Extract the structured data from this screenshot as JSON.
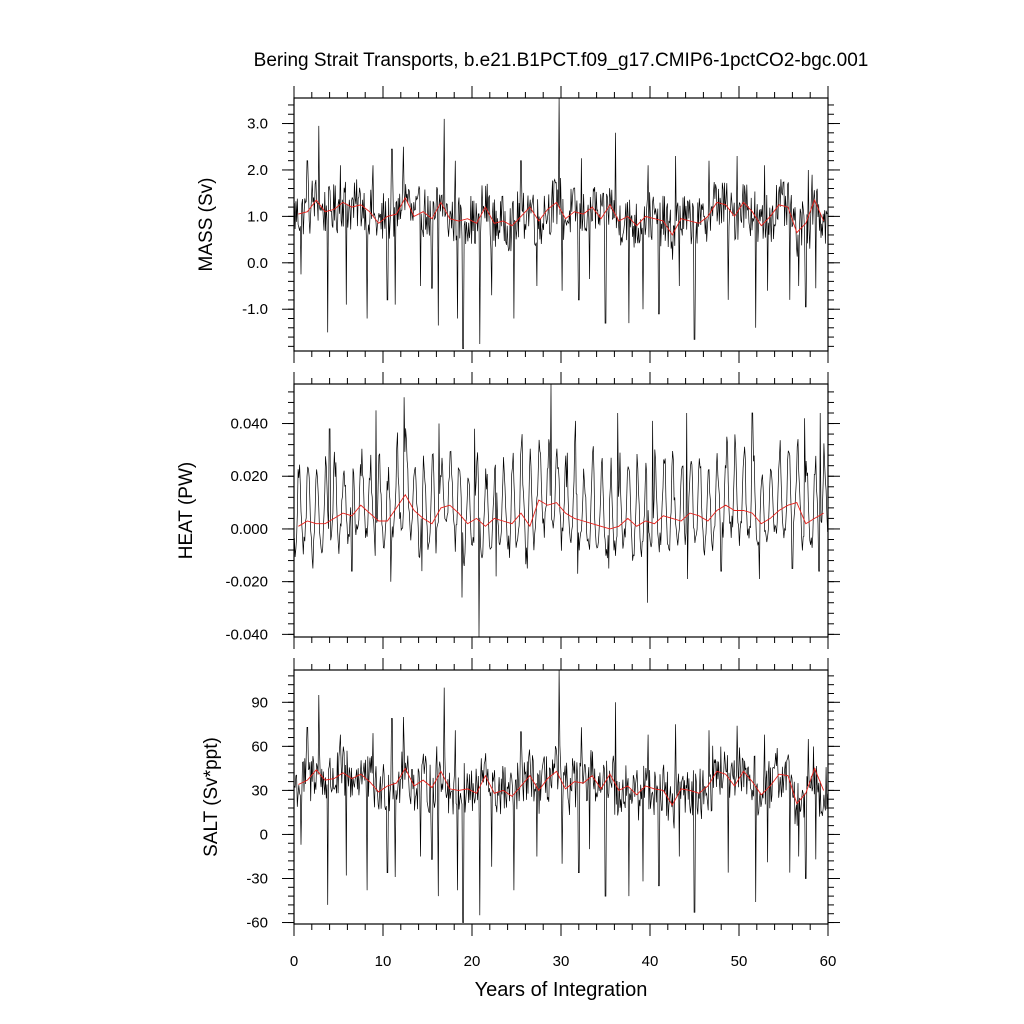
{
  "chart_data": {
    "type": "line",
    "title": "Bering Strait Transports, b.e21.B1PCT.f09_g17.CMIP6-1pctCO2-bgc.001",
    "xlabel": "Years of Integration",
    "xlim": [
      0,
      60
    ],
    "xticks": [
      0,
      10,
      20,
      30,
      40,
      50,
      60
    ],
    "xtick_labels": [
      "0",
      "10",
      "20",
      "30",
      "40",
      "50",
      "60"
    ],
    "grid": false,
    "legend": "none",
    "colors": {
      "monthly": "#000000",
      "annual_mean": "#e8201a"
    },
    "panels": [
      {
        "name": "mass",
        "ylabel": "MASS (Sv)",
        "ylim": [
          -1.9,
          3.55
        ],
        "yticks": [
          -1.0,
          0.0,
          1.0,
          2.0,
          3.0
        ],
        "ytick_labels": [
          "-1.0",
          "0.0",
          "1.0",
          "2.0",
          "3.0"
        ],
        "minor_step": 0.2,
        "annual_x": [
          0.5,
          1.5,
          2.5,
          3.5,
          4.5,
          5.5,
          6.5,
          7.5,
          8.5,
          9.5,
          10.5,
          11.5,
          12.5,
          13.5,
          14.5,
          15.5,
          16.5,
          17.5,
          18.5,
          19.5,
          20.5,
          21.5,
          22.5,
          23.5,
          24.5,
          25.5,
          26.5,
          27.5,
          28.5,
          29.5,
          30.5,
          31.5,
          32.5,
          33.5,
          34.5,
          35.5,
          36.5,
          37.5,
          38.5,
          39.5,
          40.5,
          41.5,
          42.5,
          43.5,
          44.5,
          45.5,
          46.5,
          47.5,
          48.5,
          49.5,
          50.5,
          51.5,
          52.5,
          53.5,
          54.5,
          55.5,
          56.5,
          57.5,
          58.5,
          59.5
        ],
        "annual_mean": [
          1.05,
          1.1,
          1.35,
          1.1,
          1.15,
          1.3,
          1.2,
          1.25,
          1.1,
          0.85,
          1.0,
          1.05,
          1.4,
          1.0,
          1.1,
          0.95,
          1.3,
          0.95,
          0.9,
          0.95,
          0.85,
          1.2,
          0.85,
          0.9,
          0.8,
          1.0,
          1.2,
          0.9,
          1.15,
          1.3,
          0.95,
          1.1,
          1.05,
          1.2,
          0.95,
          1.25,
          0.9,
          1.0,
          0.8,
          1.0,
          0.95,
          0.9,
          0.6,
          0.95,
          0.9,
          0.85,
          1.0,
          1.3,
          1.25,
          1.0,
          1.3,
          1.1,
          0.8,
          1.0,
          1.25,
          1.2,
          0.65,
          0.85,
          1.35,
          0.9
        ],
        "spread": 0.55,
        "dips": [
          [
            0.8,
            -0.25
          ],
          [
            3.8,
            -1.5
          ],
          [
            5.9,
            -0.9
          ],
          [
            8.2,
            -1.2
          ],
          [
            10.5,
            -0.8
          ],
          [
            11.4,
            -0.9
          ],
          [
            14.2,
            -0.5
          ],
          [
            15.5,
            -0.55
          ],
          [
            16.2,
            -1.35
          ],
          [
            18.4,
            -1.2
          ],
          [
            19.0,
            -1.85
          ],
          [
            20.9,
            -1.75
          ],
          [
            22.2,
            -0.7
          ],
          [
            24.7,
            -1.2
          ],
          [
            27.3,
            -0.5
          ],
          [
            30.1,
            -0.6
          ],
          [
            32.0,
            -0.8
          ],
          [
            33.2,
            -0.35
          ],
          [
            35.0,
            -1.3
          ],
          [
            37.6,
            -1.3
          ],
          [
            39.2,
            -1.0
          ],
          [
            41.0,
            -1.1
          ],
          [
            43.3,
            -0.5
          ],
          [
            45.0,
            -1.65
          ],
          [
            48.8,
            -0.8
          ],
          [
            51.9,
            -1.4
          ],
          [
            53.2,
            -0.6
          ],
          [
            55.7,
            -0.8
          ],
          [
            56.7,
            -0.5
          ],
          [
            57.5,
            -0.95
          ],
          [
            58.6,
            -0.55
          ]
        ],
        "peaks": [
          [
            1.5,
            2.2
          ],
          [
            2.8,
            2.95
          ],
          [
            5.2,
            2.1
          ],
          [
            8.9,
            2.1
          ],
          [
            11.0,
            2.45
          ],
          [
            12.3,
            2.5
          ],
          [
            16.9,
            3.1
          ],
          [
            18.1,
            2.2
          ],
          [
            25.5,
            2.2
          ],
          [
            29.8,
            3.55
          ],
          [
            32.3,
            2.25
          ],
          [
            36.1,
            2.8
          ],
          [
            39.8,
            2.1
          ],
          [
            42.9,
            2.3
          ],
          [
            46.6,
            2.2
          ],
          [
            49.8,
            2.3
          ],
          [
            52.9,
            2.1
          ],
          [
            57.8,
            2.0
          ]
        ]
      },
      {
        "name": "heat",
        "ylabel": "HEAT (PW)",
        "ylim": [
          -0.041,
          0.055
        ],
        "yticks": [
          -0.04,
          -0.02,
          0.0,
          0.02,
          0.04
        ],
        "ytick_labels": [
          "-0.040",
          "-0.020",
          "0.000",
          "0.020",
          "0.040"
        ],
        "minor_step": 0.004,
        "annual_x": [
          0.5,
          1.5,
          2.5,
          3.5,
          4.5,
          5.5,
          6.5,
          7.5,
          8.5,
          9.5,
          10.5,
          11.5,
          12.5,
          13.5,
          14.5,
          15.5,
          16.5,
          17.5,
          18.5,
          19.5,
          20.5,
          21.5,
          22.5,
          23.5,
          24.5,
          25.5,
          26.5,
          27.5,
          28.5,
          29.5,
          30.5,
          31.5,
          32.5,
          33.5,
          34.5,
          35.5,
          36.5,
          37.5,
          38.5,
          39.5,
          40.5,
          41.5,
          42.5,
          43.5,
          44.5,
          45.5,
          46.5,
          47.5,
          48.5,
          49.5,
          50.5,
          51.5,
          52.5,
          53.5,
          54.5,
          55.5,
          56.5,
          57.5,
          58.5,
          59.5
        ],
        "annual_mean": [
          0.001,
          0.003,
          0.002,
          0.002,
          0.004,
          0.006,
          0.005,
          0.009,
          0.006,
          0.003,
          0.003,
          0.008,
          0.013,
          0.007,
          0.004,
          0.002,
          0.008,
          0.009,
          0.006,
          0.002,
          0.004,
          0.001,
          0.004,
          0.003,
          0.002,
          0.006,
          0.001,
          0.011,
          0.009,
          0.01,
          0.006,
          0.004,
          0.003,
          0.002,
          0.001,
          0.0,
          0.001,
          0.004,
          0.001,
          0.003,
          0.002,
          0.005,
          0.004,
          0.003,
          0.006,
          0.005,
          0.003,
          0.007,
          0.009,
          0.007,
          0.007,
          0.006,
          0.002,
          0.004,
          0.007,
          0.009,
          0.01,
          0.002,
          0.004,
          0.006
        ],
        "spread_pos": 0.028,
        "spread_neg": 0.012,
        "dips": [
          [
            2.1,
            -0.015
          ],
          [
            6.5,
            -0.016
          ],
          [
            10.9,
            -0.02
          ],
          [
            14.4,
            -0.016
          ],
          [
            18.9,
            -0.026
          ],
          [
            20.8,
            -0.041
          ],
          [
            22.7,
            -0.018
          ],
          [
            26.2,
            -0.015
          ],
          [
            31.9,
            -0.017
          ],
          [
            35.4,
            -0.015
          ],
          [
            39.7,
            -0.028
          ],
          [
            44.2,
            -0.019
          ],
          [
            48.0,
            -0.016
          ],
          [
            52.3,
            -0.019
          ],
          [
            56.0,
            -0.015
          ],
          [
            59.0,
            -0.016
          ]
        ],
        "peaks": [
          [
            4.0,
            0.038
          ],
          [
            9.2,
            0.045
          ],
          [
            12.4,
            0.05
          ],
          [
            16.3,
            0.04
          ],
          [
            20.3,
            0.038
          ],
          [
            25.6,
            0.036
          ],
          [
            28.9,
            0.055
          ],
          [
            31.6,
            0.041
          ],
          [
            36.4,
            0.044
          ],
          [
            40.3,
            0.041
          ],
          [
            44.1,
            0.044
          ],
          [
            48.6,
            0.035
          ],
          [
            51.5,
            0.044
          ],
          [
            57.4,
            0.042
          ],
          [
            59.1,
            0.044
          ]
        ]
      },
      {
        "name": "salt",
        "ylabel": "SALT (Sv*ppt)",
        "ylim": [
          -61,
          112
        ],
        "yticks": [
          -60,
          -30,
          0,
          30,
          60,
          90
        ],
        "ytick_labels": [
          "-60",
          "-30",
          "0",
          "30",
          "60",
          "90"
        ],
        "minor_step": 6,
        "annual_x": [
          0.5,
          1.5,
          2.5,
          3.5,
          4.5,
          5.5,
          6.5,
          7.5,
          8.5,
          9.5,
          10.5,
          11.5,
          12.5,
          13.5,
          14.5,
          15.5,
          16.5,
          17.5,
          18.5,
          19.5,
          20.5,
          21.5,
          22.5,
          23.5,
          24.5,
          25.5,
          26.5,
          27.5,
          28.5,
          29.5,
          30.5,
          31.5,
          32.5,
          33.5,
          34.5,
          35.5,
          36.5,
          37.5,
          38.5,
          39.5,
          40.5,
          41.5,
          42.5,
          43.5,
          44.5,
          45.5,
          46.5,
          47.5,
          48.5,
          49.5,
          50.5,
          51.5,
          52.5,
          53.5,
          54.5,
          55.5,
          56.5,
          57.5,
          58.5,
          59.5
        ],
        "annual_mean": [
          34,
          37,
          44,
          37,
          38,
          42,
          38,
          41,
          36,
          29,
          33,
          35,
          45,
          33,
          37,
          32,
          43,
          31,
          30,
          31,
          28,
          40,
          28,
          30,
          26,
          33,
          40,
          30,
          38,
          43,
          31,
          36,
          35,
          40,
          31,
          41,
          30,
          33,
          27,
          33,
          31,
          30,
          20,
          31,
          30,
          28,
          33,
          43,
          41,
          33,
          43,
          36,
          27,
          33,
          41,
          40,
          21,
          28,
          45,
          30
        ],
        "spread": 18,
        "dips": [
          [
            0.8,
            -7
          ],
          [
            3.8,
            -48
          ],
          [
            5.9,
            -28
          ],
          [
            8.2,
            -38
          ],
          [
            10.5,
            -26
          ],
          [
            11.4,
            -29
          ],
          [
            14.2,
            -15
          ],
          [
            15.5,
            -17
          ],
          [
            16.2,
            -42
          ],
          [
            18.4,
            -38
          ],
          [
            19.0,
            -60
          ],
          [
            20.9,
            -55
          ],
          [
            22.2,
            -22
          ],
          [
            24.7,
            -38
          ],
          [
            27.3,
            -15
          ],
          [
            30.1,
            -20
          ],
          [
            32.0,
            -26
          ],
          [
            33.2,
            -10
          ],
          [
            35.0,
            -42
          ],
          [
            37.6,
            -42
          ],
          [
            39.2,
            -32
          ],
          [
            41.0,
            -35
          ],
          [
            43.3,
            -15
          ],
          [
            45.0,
            -53
          ],
          [
            48.8,
            -26
          ],
          [
            51.9,
            -46
          ],
          [
            53.2,
            -19
          ],
          [
            55.7,
            -26
          ],
          [
            56.7,
            -15
          ],
          [
            57.5,
            -30
          ],
          [
            58.6,
            -17
          ]
        ],
        "peaks": [
          [
            1.5,
            73
          ],
          [
            2.8,
            95
          ],
          [
            5.2,
            68
          ],
          [
            8.9,
            69
          ],
          [
            11.0,
            79
          ],
          [
            12.3,
            80
          ],
          [
            16.9,
            100
          ],
          [
            18.1,
            71
          ],
          [
            25.5,
            70
          ],
          [
            29.8,
            112
          ],
          [
            32.3,
            73
          ],
          [
            36.1,
            90
          ],
          [
            39.8,
            68
          ],
          [
            42.9,
            75
          ],
          [
            46.6,
            71
          ],
          [
            49.8,
            74
          ],
          [
            52.9,
            68
          ],
          [
            57.8,
            65
          ]
        ]
      }
    ]
  }
}
